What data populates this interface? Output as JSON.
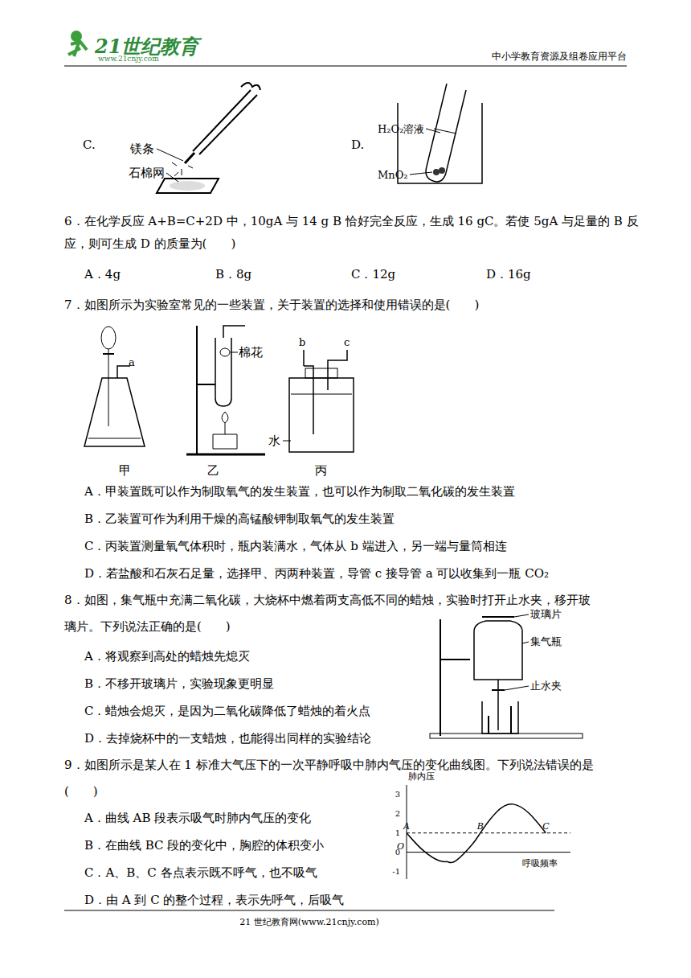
{
  "header": {
    "logo_text": "21世纪教育",
    "logo_url": "www.21cnjy.com",
    "right": "中小学教育资源及组卷应用平台"
  },
  "q5_figures": {
    "C": {
      "label": "C.",
      "parts": [
        "镁条",
        "石棉网"
      ]
    },
    "D": {
      "label": "D.",
      "parts": [
        "H₂O₂溶液",
        "MnO₂"
      ]
    }
  },
  "questions": [
    {
      "lines": [
        "6．在化学反应 A+B=C+2D 中，10gA 与 14 g B 恰好完全反应，生成 16 gC。若使 5gA 与足量的 B 反",
        "应，则可生成 D 的质量为(　　)"
      ],
      "options": [
        "A．4g",
        "B．8g",
        "C．12g",
        "D．16g"
      ]
    },
    {
      "lines": [
        "7．如图所示为实验室常见的一些装置，关于装置的选择和使用错误的是(　　)"
      ],
      "figure": {
        "a": "a",
        "cotton": "棉花",
        "b": "b",
        "c": "c",
        "water": "水",
        "names": [
          "甲",
          "乙",
          "丙"
        ]
      },
      "options": [
        "A．甲装置既可以作为制取氧气的发生装置，也可以作为制取二氧化碳的发生装置",
        "B．乙装置可作为利用干燥的高锰酸钾制取氧气的发生装置",
        "C．丙装置测量氧气体积时，瓶内装满水，气体从 b 端进入，另一端与量筒相连",
        "D．若盐酸和石灰石足量，选择甲、丙两种装置，导管 c 接导管 a 可以收集到一瓶 CO₂"
      ]
    },
    {
      "lines": [
        "8．如图，集气瓶中充满二氧化碳，大烧杯中燃着两支高低不同的蜡烛，实验时打开止水夹，移开玻",
        "璃片。下列说法正确的是(　　)"
      ],
      "figure": {
        "labels": [
          "玻璃片",
          "集气瓶",
          "止水夹"
        ]
      },
      "options": [
        "A．将观察到高处的蜡烛先熄灭",
        "B．不移开玻璃片，实验现象更明显",
        "C．蜡烛会熄灭，是因为二氧化碳降低了蜡烛的着火点",
        "D．去掉烧杯中的一支蜡烛，也能得出同样的实验结论"
      ]
    },
    {
      "lines": [
        "9．如图所示是某人在 1 标准大气压下的一次平静呼吸中肺内气压的变化曲线图。下列说法错误的是",
        "(　　)"
      ],
      "options": [
        "A．曲线 AB 段表示吸气时肺内气压的变化",
        "B．在曲线 BC 段的变化中，胸腔的体积变小",
        "C．A、B、C 各点表示既不呼气，也不吸气",
        "D．由 A 到 C 的整个过程，表示先呼气，后吸气"
      ]
    }
  ],
  "chart_data": {
    "type": "line",
    "y_label": "肺内压",
    "x_label": "呼吸频率",
    "origin": "O",
    "x": [
      0,
      1,
      2,
      2.5,
      3,
      4,
      4.5,
      5.5,
      6.5,
      7.5,
      8.5
    ],
    "values": [
      1,
      0.1,
      -0.45,
      -0.5,
      -0.45,
      0.4,
      1,
      2.1,
      2.5,
      2.0,
      1
    ],
    "color": "#000000",
    "xlim": [
      0,
      10
    ],
    "ylim": [
      -1.4,
      3.5
    ],
    "yticks": [
      -1,
      0,
      1,
      2,
      3
    ],
    "tick_labels": "y",
    "reference_line": 1,
    "points": [
      {
        "label": "A",
        "x": 0,
        "y": 1
      },
      {
        "label": "B",
        "x": 4.5,
        "y": 1
      },
      {
        "label": "C",
        "x": 8.5,
        "y": 1
      }
    ]
  },
  "footer": "21 世纪教育网(www.21cnjy.com)"
}
